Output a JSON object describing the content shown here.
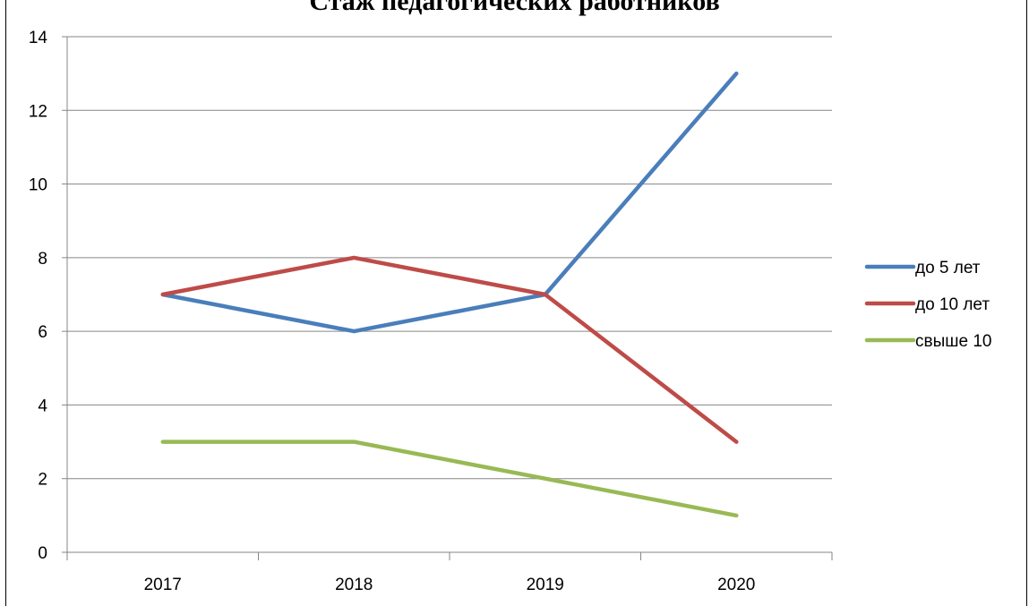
{
  "chart_data": {
    "type": "line",
    "title": "Стаж педагогических работников",
    "categories": [
      "2017",
      "2018",
      "2019",
      "2020"
    ],
    "series": [
      {
        "name": "до 5 лет",
        "values": [
          7,
          6,
          7,
          13
        ],
        "color": "#4A7EBB"
      },
      {
        "name": "до 10 лет",
        "values": [
          7,
          8,
          7,
          3
        ],
        "color": "#BE4B48"
      },
      {
        "name": "свыше 10",
        "values": [
          3,
          3,
          2,
          1
        ],
        "color": "#98B954"
      }
    ],
    "ylim": [
      0,
      14
    ],
    "yticks": [
      0,
      2,
      4,
      6,
      8,
      10,
      12,
      14
    ],
    "grid": true,
    "legend": "right"
  }
}
